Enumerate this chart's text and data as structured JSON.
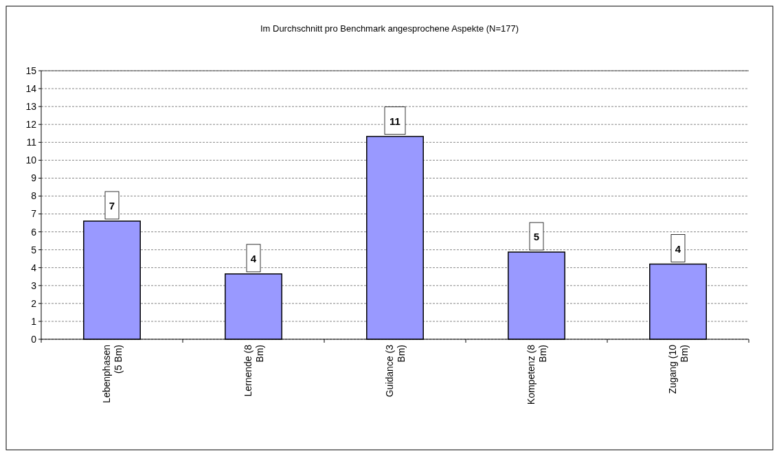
{
  "chart_data": {
    "type": "bar",
    "title": "Im Durchschnitt pro Benchmark angesprochene Aspekte (N=177)",
    "categories": [
      "Lebenphasen (5 Bm)",
      "Lernende (8 Bm)",
      "Guidance (3 Bm)",
      "Kompetenz (8 Bm)",
      "Zugang (10 Bm)"
    ],
    "values": [
      6.6,
      3.65,
      11.33,
      4.87,
      4.2
    ],
    "value_labels": [
      "7",
      "4",
      "11",
      "5",
      "4"
    ],
    "color": "#9999ff",
    "ylim": [
      0,
      15
    ],
    "yticks": [
      0,
      1,
      2,
      3,
      4,
      5,
      6,
      7,
      8,
      9,
      10,
      11,
      12,
      13,
      14,
      15
    ],
    "grid": "y"
  }
}
